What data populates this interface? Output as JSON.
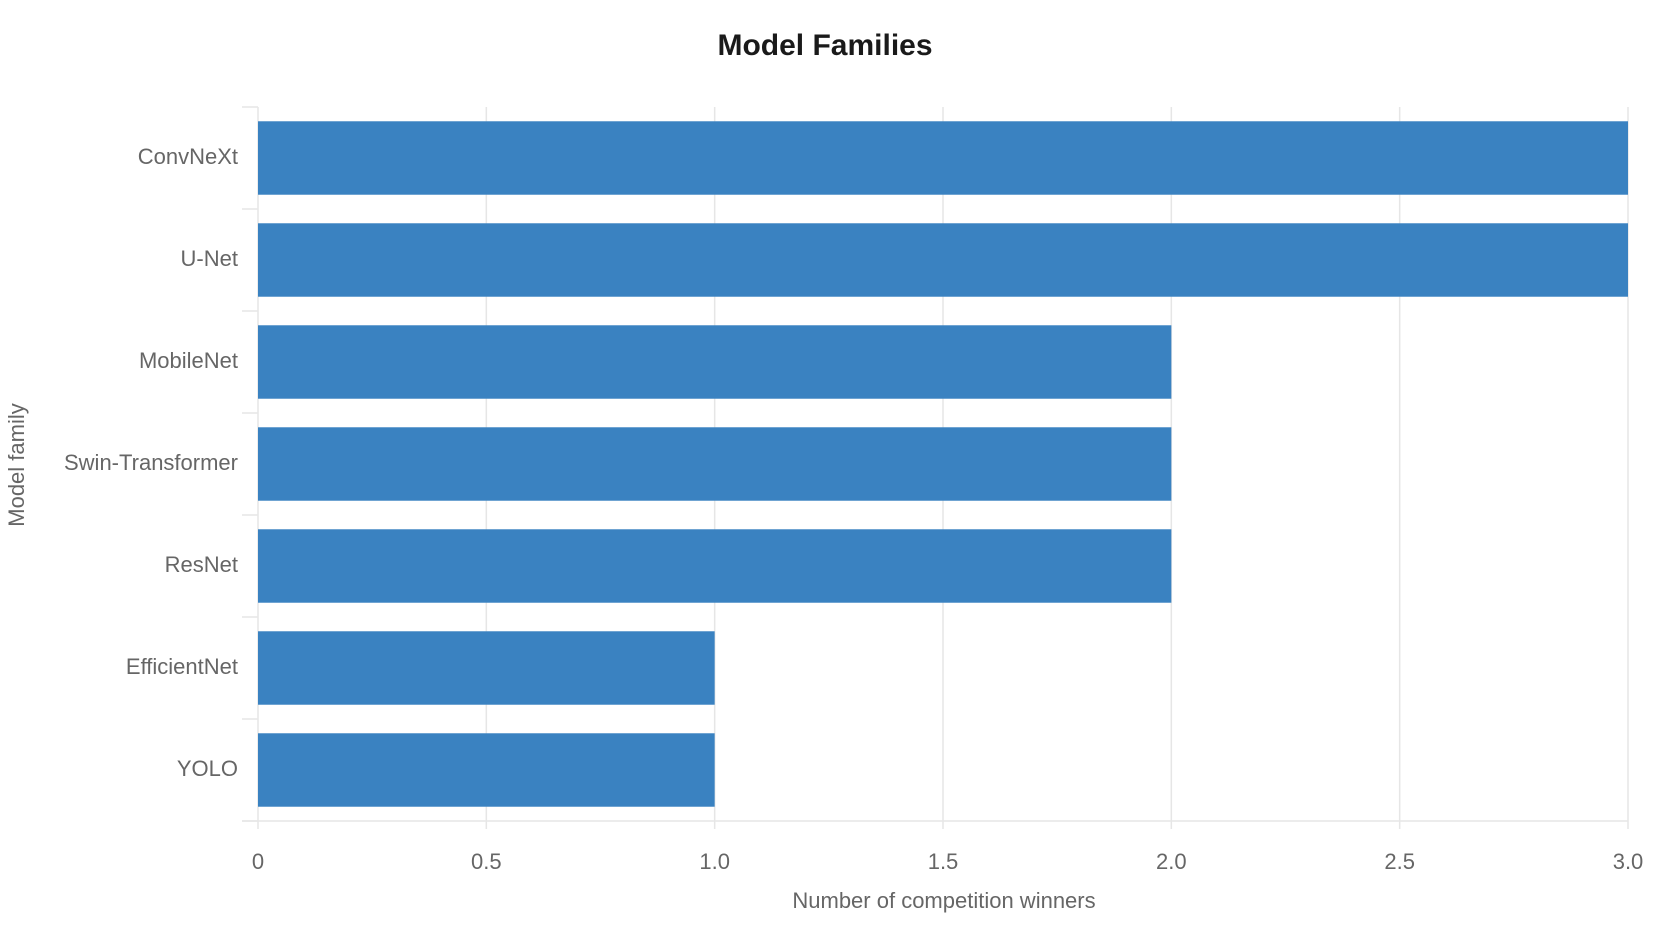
{
  "chart_data": {
    "type": "bar",
    "orientation": "horizontal",
    "title": "Model Families",
    "xlabel": "Number of competition winners",
    "ylabel": "Model family",
    "categories": [
      "ConvNeXt",
      "U-Net",
      "MobileNet",
      "Swin-Transformer",
      "ResNet",
      "EfficientNet",
      "YOLO"
    ],
    "values": [
      3,
      3,
      2,
      2,
      2,
      1,
      1
    ],
    "xlim": [
      0,
      3
    ],
    "xticks": [
      0,
      0.5,
      1,
      1.5,
      2,
      2.5,
      3
    ],
    "xtick_labels": [
      "0",
      "0.5",
      "1.0",
      "1.5",
      "2.0",
      "2.5",
      "3.0"
    ],
    "grid": true,
    "legend": "none",
    "colors": {
      "bar": "#3a82c1",
      "grid": "#e6e6e6",
      "text": "#666666",
      "title": "#1a1a1a"
    }
  }
}
